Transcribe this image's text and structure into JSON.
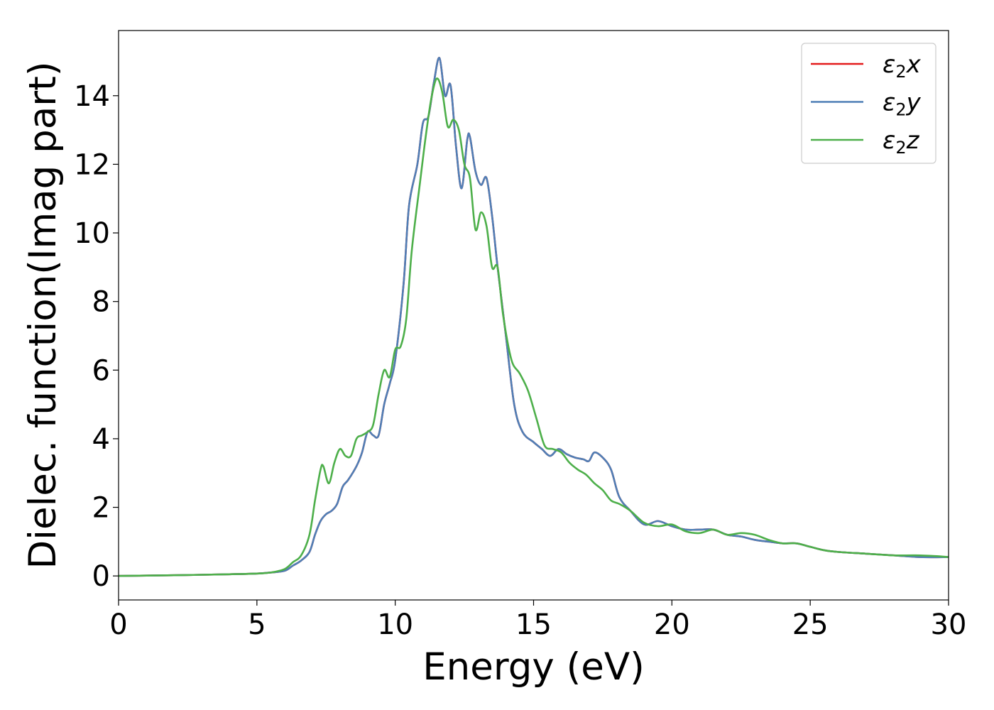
{
  "chart_data": {
    "type": "line",
    "xlabel": "Energy (eV)",
    "ylabel": "Dielec. function(Imag part)",
    "xlim": [
      0,
      30
    ],
    "ylim": [
      -0.7,
      15.9
    ],
    "xticks": [
      0,
      5,
      10,
      15,
      20,
      25,
      30
    ],
    "yticks": [
      0,
      2,
      4,
      6,
      8,
      10,
      12,
      14
    ],
    "legend_position": "top-right",
    "grid": false,
    "series": [
      {
        "name": "ε₂x",
        "legend": {
          "base": "ε",
          "sub": "2",
          "var": "x"
        },
        "color": "#e41a1c",
        "x": [
          0,
          2,
          4,
          5,
          5.5,
          6,
          6.3,
          6.6,
          6.9,
          7.1,
          7.3,
          7.5,
          7.7,
          7.9,
          8.1,
          8.3,
          8.6,
          8.8,
          9.0,
          9.2,
          9.4,
          9.6,
          9.8,
          10.0,
          10.3,
          10.5,
          10.8,
          11.0,
          11.2,
          11.4,
          11.6,
          11.8,
          12.0,
          12.2,
          12.4,
          12.6,
          12.7,
          12.9,
          13.1,
          13.3,
          13.5,
          13.7,
          14.0,
          14.3,
          14.6,
          15.0,
          15.3,
          15.6,
          15.9,
          16.2,
          16.5,
          16.8,
          17.0,
          17.2,
          17.5,
          17.8,
          18.1,
          18.5,
          19.0,
          19.5,
          20.0,
          20.5,
          21.0,
          21.5,
          22.0,
          22.5,
          23.0,
          23.5,
          24.0,
          24.5,
          25.0,
          25.5,
          26.0,
          27.0,
          28.0,
          29.0,
          30.0
        ],
        "values": [
          0.0,
          0.02,
          0.05,
          0.07,
          0.1,
          0.15,
          0.3,
          0.45,
          0.7,
          1.2,
          1.6,
          1.8,
          1.9,
          2.1,
          2.6,
          2.8,
          3.2,
          3.6,
          4.2,
          4.1,
          4.1,
          5.0,
          5.6,
          6.3,
          8.5,
          10.8,
          12.0,
          13.2,
          13.4,
          14.4,
          15.1,
          14.0,
          14.3,
          12.5,
          11.3,
          12.7,
          12.8,
          11.8,
          11.4,
          11.6,
          10.5,
          9.0,
          7.0,
          5.0,
          4.2,
          3.9,
          3.7,
          3.5,
          3.7,
          3.55,
          3.45,
          3.4,
          3.35,
          3.6,
          3.45,
          3.1,
          2.3,
          1.9,
          1.5,
          1.6,
          1.45,
          1.35,
          1.35,
          1.35,
          1.2,
          1.15,
          1.05,
          1.0,
          0.95,
          0.95,
          0.85,
          0.75,
          0.7,
          0.65,
          0.6,
          0.55,
          0.55
        ]
      },
      {
        "name": "ε₂y",
        "legend": {
          "base": "ε",
          "sub": "2",
          "var": "y"
        },
        "color": "#4f7fb6",
        "x": [
          0,
          2,
          4,
          5,
          5.5,
          6,
          6.3,
          6.6,
          6.9,
          7.1,
          7.3,
          7.5,
          7.7,
          7.9,
          8.1,
          8.3,
          8.6,
          8.8,
          9.0,
          9.2,
          9.4,
          9.6,
          9.8,
          10.0,
          10.3,
          10.5,
          10.8,
          11.0,
          11.2,
          11.4,
          11.6,
          11.8,
          12.0,
          12.2,
          12.4,
          12.6,
          12.7,
          12.9,
          13.1,
          13.3,
          13.5,
          13.7,
          14.0,
          14.3,
          14.6,
          15.0,
          15.3,
          15.6,
          15.9,
          16.2,
          16.5,
          16.8,
          17.0,
          17.2,
          17.5,
          17.8,
          18.1,
          18.5,
          19.0,
          19.5,
          20.0,
          20.5,
          21.0,
          21.5,
          22.0,
          22.5,
          23.0,
          23.5,
          24.0,
          24.5,
          25.0,
          25.5,
          26.0,
          27.0,
          28.0,
          29.0,
          30.0
        ],
        "values": [
          0.0,
          0.02,
          0.05,
          0.07,
          0.1,
          0.15,
          0.3,
          0.45,
          0.7,
          1.2,
          1.6,
          1.8,
          1.9,
          2.1,
          2.6,
          2.8,
          3.2,
          3.6,
          4.2,
          4.1,
          4.1,
          5.0,
          5.6,
          6.3,
          8.5,
          10.8,
          12.0,
          13.2,
          13.4,
          14.4,
          15.1,
          14.0,
          14.3,
          12.5,
          11.3,
          12.7,
          12.8,
          11.8,
          11.4,
          11.6,
          10.5,
          9.0,
          7.0,
          5.0,
          4.2,
          3.9,
          3.7,
          3.5,
          3.7,
          3.55,
          3.45,
          3.4,
          3.35,
          3.6,
          3.45,
          3.1,
          2.3,
          1.9,
          1.5,
          1.6,
          1.45,
          1.35,
          1.35,
          1.35,
          1.2,
          1.15,
          1.05,
          1.0,
          0.95,
          0.95,
          0.85,
          0.75,
          0.7,
          0.65,
          0.6,
          0.55,
          0.55
        ]
      },
      {
        "name": "ε₂z",
        "legend": {
          "base": "ε",
          "sub": "2",
          "var": "z"
        },
        "color": "#4daf4a",
        "x": [
          0,
          2,
          4,
          5,
          5.5,
          6,
          6.3,
          6.6,
          6.9,
          7.1,
          7.3,
          7.4,
          7.6,
          7.8,
          8.0,
          8.2,
          8.4,
          8.6,
          8.8,
          9.0,
          9.2,
          9.4,
          9.6,
          9.8,
          10.0,
          10.2,
          10.4,
          10.6,
          10.9,
          11.1,
          11.3,
          11.5,
          11.7,
          11.9,
          12.1,
          12.3,
          12.5,
          12.7,
          12.9,
          13.1,
          13.3,
          13.5,
          13.7,
          13.9,
          14.2,
          14.5,
          14.8,
          15.1,
          15.4,
          15.7,
          16.0,
          16.3,
          16.6,
          16.9,
          17.2,
          17.5,
          17.8,
          18.1,
          18.5,
          19.0,
          19.5,
          20.0,
          20.5,
          21.0,
          21.5,
          22.0,
          22.5,
          23.0,
          23.5,
          24.0,
          24.5,
          25.0,
          25.5,
          26.0,
          27.0,
          28.0,
          28.8,
          29.5,
          30.0
        ],
        "values": [
          0.0,
          0.02,
          0.05,
          0.07,
          0.1,
          0.2,
          0.4,
          0.6,
          1.2,
          2.2,
          3.1,
          3.2,
          2.7,
          3.3,
          3.7,
          3.5,
          3.5,
          4.0,
          4.1,
          4.2,
          4.4,
          5.3,
          6.0,
          5.8,
          6.6,
          6.7,
          7.5,
          9.5,
          11.5,
          12.8,
          13.9,
          14.5,
          14.1,
          13.1,
          13.3,
          13.0,
          12.0,
          11.6,
          10.1,
          10.6,
          10.2,
          9.0,
          9.0,
          7.6,
          6.3,
          5.9,
          5.4,
          4.6,
          3.8,
          3.7,
          3.6,
          3.3,
          3.1,
          2.95,
          2.7,
          2.5,
          2.2,
          2.1,
          1.9,
          1.55,
          1.45,
          1.5,
          1.3,
          1.25,
          1.35,
          1.2,
          1.25,
          1.2,
          1.05,
          0.95,
          0.95,
          0.85,
          0.75,
          0.7,
          0.65,
          0.6,
          0.6,
          0.58,
          0.55
        ]
      }
    ]
  }
}
